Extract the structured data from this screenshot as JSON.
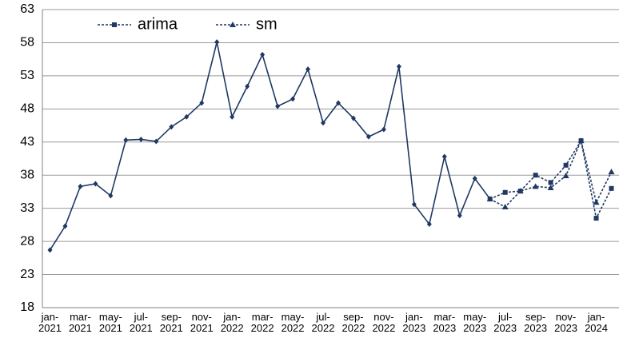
{
  "chart_data": {
    "type": "line",
    "categories": [
      "jan-2021",
      null,
      "mar-2021",
      null,
      "may-2021",
      null,
      "jul-2021",
      null,
      "sep-2021",
      null,
      "nov-2021",
      null,
      "jan-2022",
      null,
      "mar-2022",
      null,
      "may-2022",
      null,
      "jul-2022",
      null,
      "sep-2022",
      null,
      "nov-2022",
      null,
      "jan-2023",
      null,
      "mar-2023",
      null,
      "may-2023",
      null,
      "jul-2023",
      null,
      "sep-2023",
      null,
      "nov-2023",
      null,
      "jan-2024",
      null
    ],
    "series": [
      {
        "color": "#1f3864",
        "marker": "diamond",
        "dashed": false,
        "values": [
          26.7,
          30.3,
          36.3,
          36.7,
          34.9,
          43.3,
          43.4,
          43.1,
          45.3,
          46.8,
          48.9,
          58.1,
          46.8,
          51.4,
          56.2,
          48.4,
          49.5,
          54.0,
          45.9,
          48.9,
          46.6,
          43.8,
          44.9,
          54.4,
          33.6,
          30.6,
          40.8,
          31.9,
          37.5,
          34.4,
          null,
          null,
          null,
          null,
          null,
          null,
          null,
          null
        ]
      },
      {
        "name": "arima",
        "color": "#1f3864",
        "marker": "square",
        "dashed": true,
        "values": [
          null,
          null,
          null,
          null,
          null,
          null,
          null,
          null,
          null,
          null,
          null,
          null,
          null,
          null,
          null,
          null,
          null,
          null,
          null,
          null,
          null,
          null,
          null,
          null,
          null,
          null,
          null,
          null,
          null,
          34.4,
          35.4,
          35.6,
          38.0,
          36.9,
          39.5,
          43.2,
          31.5,
          36.0
        ]
      },
      {
        "name": "sm",
        "color": "#1f3864",
        "marker": "triangle",
        "dashed": true,
        "values": [
          null,
          null,
          null,
          null,
          null,
          null,
          null,
          null,
          null,
          null,
          null,
          null,
          null,
          null,
          null,
          null,
          null,
          null,
          null,
          null,
          null,
          null,
          null,
          null,
          null,
          null,
          null,
          null,
          null,
          34.4,
          33.2,
          35.6,
          36.3,
          36.1,
          37.9,
          43.2,
          33.9,
          38.5
        ]
      }
    ],
    "ylim": [
      18,
      63
    ],
    "yticks": [
      18,
      23,
      28,
      33,
      38,
      43,
      48,
      53,
      58,
      63
    ],
    "grid": true,
    "legend": "top-left"
  }
}
